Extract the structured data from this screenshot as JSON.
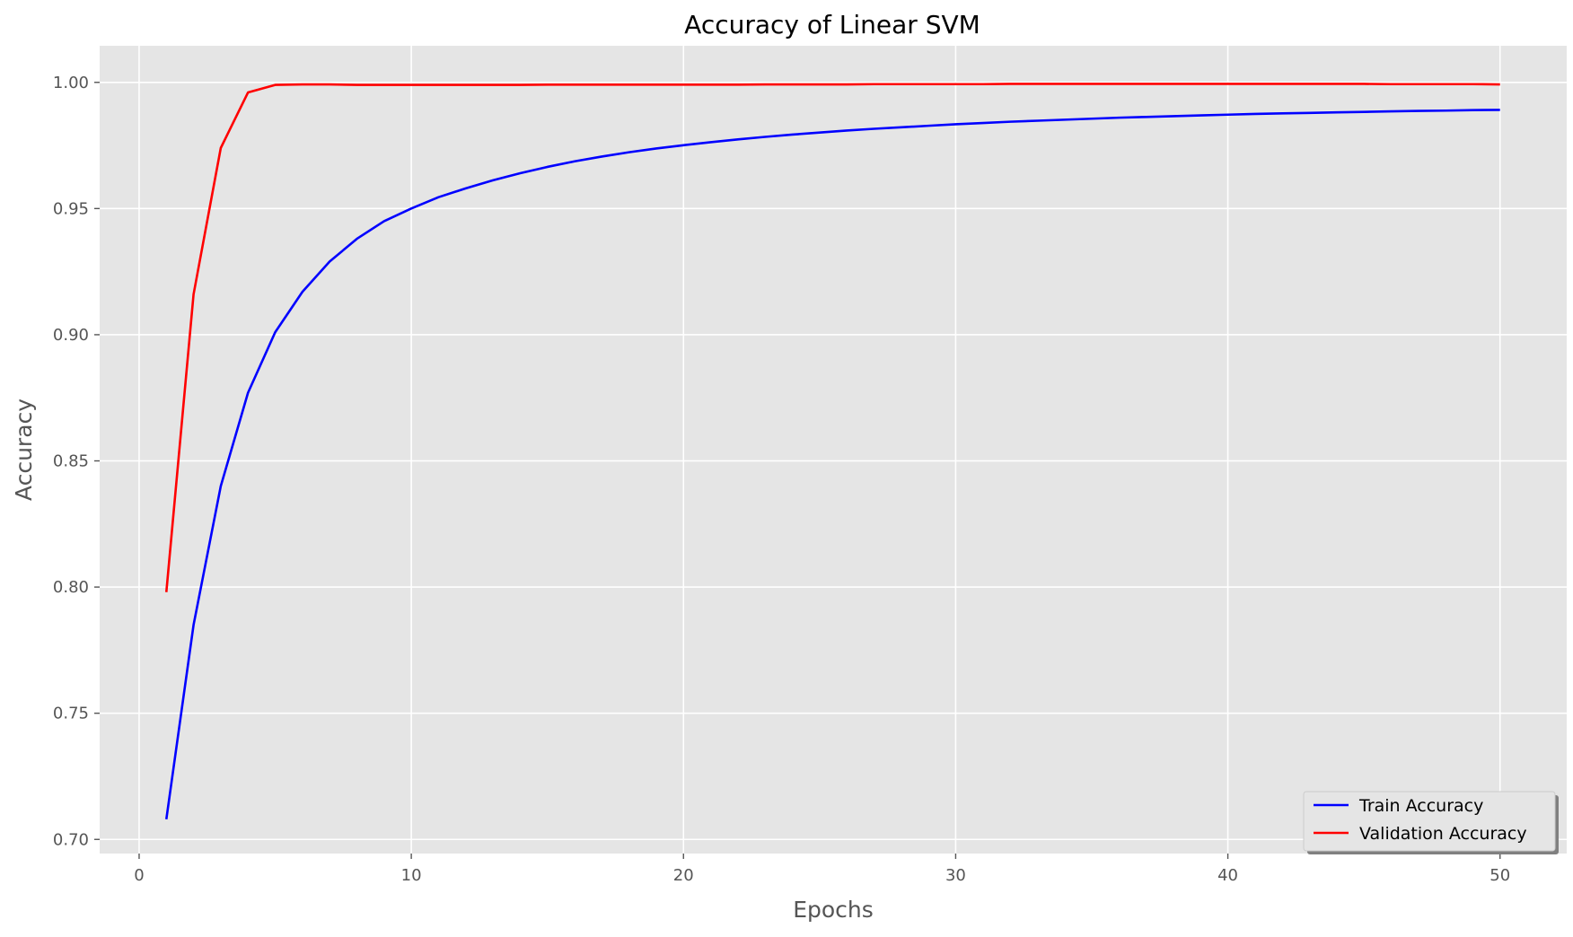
{
  "chart_data": {
    "type": "line",
    "title": "Accuracy of Linear SVM",
    "xlabel": "Epochs",
    "ylabel": "Accuracy",
    "xlim": [
      -1.45,
      52.45
    ],
    "ylim": [
      0.6944,
      1.0145
    ],
    "xticks": [
      0,
      10,
      20,
      30,
      40,
      50
    ],
    "yticks": [
      0.7,
      0.75,
      0.8,
      0.85,
      0.9,
      0.95,
      1.0
    ],
    "ytick_labels": [
      "0.70",
      "0.75",
      "0.80",
      "0.85",
      "0.90",
      "0.95",
      "1.00"
    ],
    "grid": true,
    "legend_position": "lower-right",
    "x": [
      1,
      2,
      3,
      4,
      5,
      6,
      7,
      8,
      9,
      10,
      11,
      12,
      13,
      14,
      15,
      16,
      17,
      18,
      19,
      20,
      21,
      22,
      23,
      24,
      25,
      26,
      27,
      28,
      29,
      30,
      31,
      32,
      33,
      34,
      35,
      36,
      37,
      38,
      39,
      40,
      41,
      42,
      43,
      44,
      45,
      46,
      47,
      48,
      49,
      50
    ],
    "series": [
      {
        "name": "Train Accuracy",
        "color": "#0000ff",
        "values": [
          0.708,
          0.785,
          0.84,
          0.877,
          0.901,
          0.917,
          0.929,
          0.938,
          0.945,
          0.95,
          0.9545,
          0.958,
          0.9612,
          0.964,
          0.9665,
          0.9687,
          0.9706,
          0.9723,
          0.9738,
          0.9751,
          0.9763,
          0.9774,
          0.9784,
          0.9793,
          0.9801,
          0.9809,
          0.9816,
          0.9822,
          0.9828,
          0.9834,
          0.9839,
          0.9844,
          0.9848,
          0.9852,
          0.9856,
          0.986,
          0.9863,
          0.9866,
          0.9869,
          0.9872,
          0.9875,
          0.9877,
          0.9879,
          0.9881,
          0.9883,
          0.9885,
          0.9887,
          0.9888,
          0.989,
          0.9891
        ]
      },
      {
        "name": "Validation Accuracy",
        "color": "#ff0000",
        "values": [
          0.798,
          0.916,
          0.974,
          0.996,
          0.999,
          0.9992,
          0.9992,
          0.999,
          0.999,
          0.999,
          0.999,
          0.999,
          0.999,
          0.999,
          0.9991,
          0.9991,
          0.9991,
          0.9991,
          0.9991,
          0.9991,
          0.9991,
          0.9991,
          0.9992,
          0.9992,
          0.9992,
          0.9992,
          0.9993,
          0.9993,
          0.9993,
          0.9993,
          0.9993,
          0.9994,
          0.9994,
          0.9994,
          0.9994,
          0.9994,
          0.9994,
          0.9994,
          0.9994,
          0.9994,
          0.9994,
          0.9994,
          0.9994,
          0.9994,
          0.9994,
          0.9993,
          0.9993,
          0.9993,
          0.9993,
          0.9992
        ]
      }
    ]
  }
}
